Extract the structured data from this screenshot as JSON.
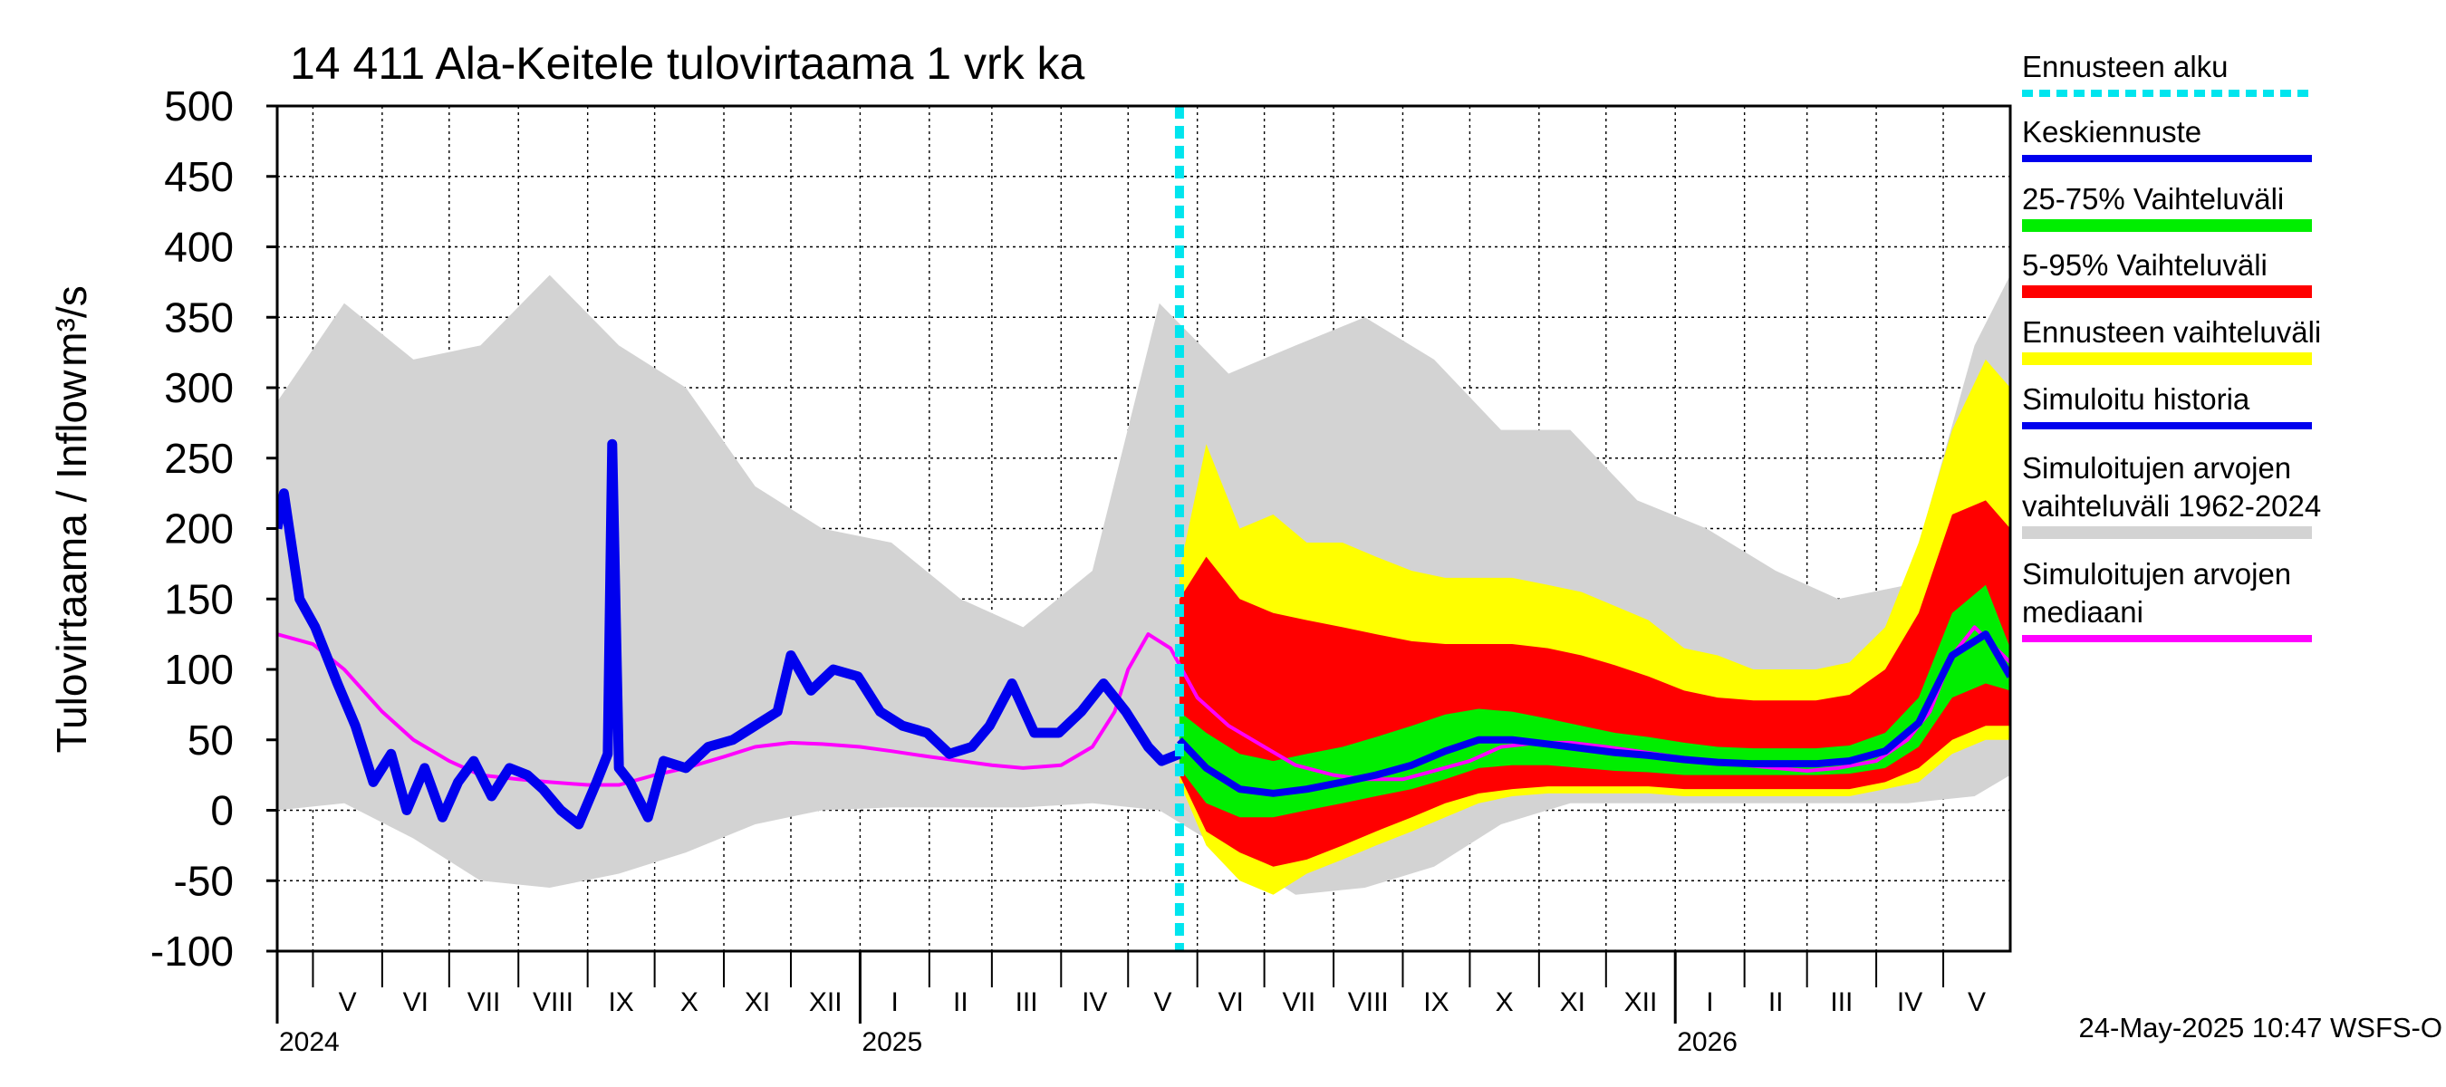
{
  "chart_data": {
    "type": "area",
    "title": "14 411 Ala-Keitele tulovirtaama 1 vrk ka",
    "ylabel": "Tulovirtaama / Inflow",
    "yunit": "m³/s",
    "ylim": [
      -100,
      500
    ],
    "yticks": [
      500,
      450,
      400,
      350,
      300,
      250,
      200,
      150,
      100,
      50,
      0,
      -50,
      -100
    ],
    "grid": true,
    "x_range": [
      "2024-04-15",
      "2026-05-31"
    ],
    "forecast_start": "2025-05-24",
    "months": [
      {
        "label": "V",
        "start": "2024-05-01"
      },
      {
        "label": "VI",
        "start": "2024-06-01"
      },
      {
        "label": "VII",
        "start": "2024-07-01"
      },
      {
        "label": "VIII",
        "start": "2024-08-01"
      },
      {
        "label": "IX",
        "start": "2024-09-01"
      },
      {
        "label": "X",
        "start": "2024-10-01"
      },
      {
        "label": "XI",
        "start": "2024-11-01"
      },
      {
        "label": "XII",
        "start": "2024-12-01"
      },
      {
        "label": "I",
        "start": "2025-01-01"
      },
      {
        "label": "II",
        "start": "2025-02-01"
      },
      {
        "label": "III",
        "start": "2025-03-01"
      },
      {
        "label": "IV",
        "start": "2025-04-01"
      },
      {
        "label": "V",
        "start": "2025-05-01"
      },
      {
        "label": "VI",
        "start": "2025-06-01"
      },
      {
        "label": "VII",
        "start": "2025-07-01"
      },
      {
        "label": "VIII",
        "start": "2025-08-01"
      },
      {
        "label": "IX",
        "start": "2025-09-01"
      },
      {
        "label": "X",
        "start": "2025-10-01"
      },
      {
        "label": "XI",
        "start": "2025-11-01"
      },
      {
        "label": "XII",
        "start": "2025-12-01"
      },
      {
        "label": "I",
        "start": "2026-01-01"
      },
      {
        "label": "II",
        "start": "2026-02-01"
      },
      {
        "label": "III",
        "start": "2026-03-01"
      },
      {
        "label": "IV",
        "start": "2026-04-01"
      },
      {
        "label": "V",
        "start": "2026-05-01"
      }
    ],
    "years": [
      {
        "label": "2024",
        "start": "2024-04-15"
      },
      {
        "label": "2025",
        "start": "2025-01-01"
      },
      {
        "label": "2026",
        "start": "2026-01-01"
      }
    ],
    "legend_placement": "right",
    "legend": [
      {
        "label": "Ennusteen alku",
        "color": "#00e5ee",
        "style": "dashed"
      },
      {
        "label": "Keskiennuste",
        "color": "#0000ee",
        "style": "line"
      },
      {
        "label": "25-75% Vaihteluväli",
        "color": "#00ee00",
        "style": "band"
      },
      {
        "label": "5-95% Vaihteluväli",
        "color": "#ff0000",
        "style": "band"
      },
      {
        "label": "Ennusteen vaihteluväli",
        "color": "#ffff00",
        "style": "band"
      },
      {
        "label": "Simuloitu historia",
        "color": "#0000ee",
        "style": "line"
      },
      {
        "label": "Simuloitujen arvojen vaihteluväli 1962-2024",
        "lines": [
          "Simuloitujen arvojen",
          "vaihteluväli 1962-2024"
        ],
        "color": "#d3d3d3",
        "style": "band"
      },
      {
        "label": "Simuloitujen arvojen mediaani",
        "lines": [
          "Simuloitujen arvojen",
          "mediaani"
        ],
        "color": "#ff00ff",
        "style": "line"
      }
    ],
    "series": [
      {
        "key": "hist_range",
        "x": [
          "2024-04-15",
          "2024-05-15",
          "2024-06-15",
          "2024-07-15",
          "2024-08-15",
          "2024-09-15",
          "2024-10-15",
          "2024-11-15",
          "2024-12-15",
          "2025-01-15",
          "2025-02-15",
          "2025-03-15",
          "2025-04-15",
          "2025-05-15",
          "2025-06-15",
          "2025-07-15",
          "2025-08-15",
          "2025-09-15",
          "2025-10-15",
          "2025-11-15",
          "2025-12-15",
          "2026-01-15",
          "2026-02-15",
          "2026-03-15",
          "2026-04-15",
          "2026-05-15",
          "2026-05-31"
        ],
        "low": [
          0,
          5,
          -20,
          -50,
          -55,
          -45,
          -30,
          -10,
          0,
          2,
          2,
          2,
          5,
          0,
          -30,
          -60,
          -55,
          -40,
          -10,
          5,
          5,
          5,
          5,
          5,
          5,
          10,
          25
        ],
        "high": [
          290,
          360,
          320,
          330,
          380,
          330,
          300,
          230,
          200,
          190,
          150,
          130,
          170,
          360,
          310,
          330,
          350,
          320,
          270,
          270,
          220,
          200,
          170,
          150,
          160,
          330,
          380
        ]
      },
      {
        "key": "fc_range",
        "x": [
          "2025-05-24",
          "2025-06-05",
          "2025-06-20",
          "2025-07-05",
          "2025-07-20",
          "2025-08-05",
          "2025-08-20",
          "2025-09-05",
          "2025-09-20",
          "2025-10-05",
          "2025-10-20",
          "2025-11-05",
          "2025-11-20",
          "2025-12-05",
          "2025-12-20",
          "2026-01-05",
          "2026-01-20",
          "2026-02-05",
          "2026-02-20",
          "2026-03-05",
          "2026-03-20",
          "2026-04-05",
          "2026-04-20",
          "2026-05-05",
          "2026-05-20",
          "2026-05-31"
        ],
        "low": [
          20,
          -25,
          -50,
          -60,
          -45,
          -35,
          -25,
          -15,
          -5,
          5,
          10,
          12,
          12,
          12,
          12,
          10,
          10,
          10,
          10,
          10,
          10,
          15,
          20,
          40,
          50,
          50
        ],
        "high": [
          170,
          260,
          200,
          210,
          190,
          190,
          180,
          170,
          165,
          165,
          165,
          160,
          155,
          145,
          135,
          115,
          110,
          100,
          100,
          100,
          105,
          130,
          190,
          270,
          320,
          300
        ]
      },
      {
        "key": "p5_95",
        "x": [
          "2025-05-24",
          "2025-06-05",
          "2025-06-20",
          "2025-07-05",
          "2025-07-20",
          "2025-08-05",
          "2025-08-20",
          "2025-09-05",
          "2025-09-20",
          "2025-10-05",
          "2025-10-20",
          "2025-11-05",
          "2025-11-20",
          "2025-12-05",
          "2025-12-20",
          "2026-01-05",
          "2026-01-20",
          "2026-02-05",
          "2026-02-20",
          "2026-03-05",
          "2026-03-20",
          "2026-04-05",
          "2026-04-20",
          "2026-05-05",
          "2026-05-20",
          "2026-05-31"
        ],
        "low": [
          25,
          -15,
          -30,
          -40,
          -35,
          -25,
          -15,
          -5,
          5,
          12,
          15,
          17,
          17,
          17,
          17,
          15,
          15,
          15,
          15,
          15,
          15,
          20,
          30,
          50,
          60,
          60
        ],
        "high": [
          150,
          180,
          150,
          140,
          135,
          130,
          125,
          120,
          118,
          118,
          118,
          115,
          110,
          103,
          95,
          85,
          80,
          78,
          78,
          78,
          82,
          100,
          140,
          210,
          220,
          200
        ]
      },
      {
        "key": "p25_75",
        "x": [
          "2025-05-24",
          "2025-06-05",
          "2025-06-20",
          "2025-07-05",
          "2025-07-20",
          "2025-08-05",
          "2025-08-20",
          "2025-09-05",
          "2025-09-20",
          "2025-10-05",
          "2025-10-20",
          "2025-11-05",
          "2025-11-20",
          "2025-12-05",
          "2025-12-20",
          "2026-01-05",
          "2026-01-20",
          "2026-02-05",
          "2026-02-20",
          "2026-03-05",
          "2026-03-20",
          "2026-04-05",
          "2026-04-20",
          "2026-05-05",
          "2026-05-20",
          "2026-05-31"
        ],
        "low": [
          30,
          5,
          -5,
          -5,
          0,
          5,
          10,
          15,
          22,
          30,
          32,
          32,
          30,
          28,
          27,
          25,
          25,
          25,
          25,
          25,
          26,
          30,
          45,
          80,
          90,
          85
        ],
        "high": [
          70,
          55,
          40,
          35,
          40,
          45,
          52,
          60,
          68,
          72,
          70,
          65,
          60,
          55,
          52,
          48,
          45,
          44,
          44,
          44,
          46,
          55,
          80,
          140,
          160,
          115
        ]
      },
      {
        "key": "median_fc",
        "name": "Keskiennuste",
        "x": [
          "2025-05-24",
          "2025-06-05",
          "2025-06-20",
          "2025-07-05",
          "2025-07-20",
          "2025-08-05",
          "2025-08-20",
          "2025-09-05",
          "2025-09-20",
          "2025-10-05",
          "2025-10-20",
          "2025-11-05",
          "2025-11-20",
          "2025-12-05",
          "2025-12-20",
          "2026-01-05",
          "2026-01-20",
          "2026-02-05",
          "2026-02-20",
          "2026-03-05",
          "2026-03-20",
          "2026-04-05",
          "2026-04-20",
          "2026-05-05",
          "2026-05-20",
          "2026-05-31"
        ],
        "y": [
          50,
          30,
          15,
          12,
          15,
          20,
          25,
          32,
          42,
          50,
          50,
          47,
          44,
          41,
          39,
          36,
          34,
          33,
          33,
          33,
          35,
          42,
          62,
          110,
          125,
          95
        ]
      },
      {
        "key": "sim_hist",
        "name": "Simuloitu historia",
        "x": [
          "2024-04-15",
          "2024-04-18",
          "2024-04-25",
          "2024-05-02",
          "2024-05-12",
          "2024-05-20",
          "2024-05-28",
          "2024-06-05",
          "2024-06-12",
          "2024-06-20",
          "2024-06-28",
          "2024-07-05",
          "2024-07-12",
          "2024-07-20",
          "2024-07-28",
          "2024-08-05",
          "2024-08-12",
          "2024-08-20",
          "2024-08-28",
          "2024-09-05",
          "2024-09-10",
          "2024-09-12",
          "2024-09-15",
          "2024-09-20",
          "2024-09-28",
          "2024-10-05",
          "2024-10-15",
          "2024-10-25",
          "2024-11-05",
          "2024-11-15",
          "2024-11-25",
          "2024-12-01",
          "2024-12-10",
          "2024-12-20",
          "2024-12-31",
          "2025-01-10",
          "2025-01-20",
          "2025-01-31",
          "2025-02-10",
          "2025-02-20",
          "2025-02-28",
          "2025-03-10",
          "2025-03-20",
          "2025-03-31",
          "2025-04-10",
          "2025-04-20",
          "2025-04-30",
          "2025-05-10",
          "2025-05-16",
          "2025-05-24"
        ],
        "y": [
          200,
          225,
          150,
          130,
          90,
          60,
          20,
          40,
          0,
          30,
          -5,
          20,
          35,
          10,
          30,
          25,
          15,
          0,
          -10,
          20,
          40,
          260,
          30,
          20,
          -5,
          35,
          30,
          45,
          50,
          60,
          70,
          110,
          85,
          100,
          95,
          70,
          60,
          55,
          40,
          45,
          60,
          90,
          55,
          55,
          70,
          90,
          70,
          45,
          35,
          40
        ]
      },
      {
        "key": "median_hist",
        "name": "Simuloitujen arvojen mediaani",
        "x": [
          "2024-04-15",
          "2024-05-01",
          "2024-05-15",
          "2024-06-01",
          "2024-06-15",
          "2024-07-01",
          "2024-07-15",
          "2024-08-01",
          "2024-08-15",
          "2024-09-01",
          "2024-09-15",
          "2024-10-01",
          "2024-10-15",
          "2024-11-01",
          "2024-11-15",
          "2024-12-01",
          "2024-12-15",
          "2025-01-01",
          "2025-01-15",
          "2025-02-01",
          "2025-02-15",
          "2025-03-01",
          "2025-03-15",
          "2025-04-01",
          "2025-04-15",
          "2025-04-25",
          "2025-05-01",
          "2025-05-10",
          "2025-05-20",
          "2025-06-01",
          "2025-06-15",
          "2025-07-01",
          "2025-07-15",
          "2025-08-01",
          "2025-08-15",
          "2025-09-01",
          "2025-09-15",
          "2025-10-01",
          "2025-10-15",
          "2025-11-01",
          "2025-11-15",
          "2025-12-01",
          "2025-12-15",
          "2026-01-01",
          "2026-01-15",
          "2026-02-01",
          "2026-02-15",
          "2026-03-01",
          "2026-03-15",
          "2026-04-01",
          "2026-04-15",
          "2026-04-25",
          "2026-05-05",
          "2026-05-15",
          "2026-05-31"
        ],
        "y": [
          125,
          118,
          100,
          70,
          50,
          35,
          25,
          22,
          20,
          18,
          18,
          25,
          30,
          38,
          45,
          48,
          47,
          45,
          42,
          38,
          35,
          32,
          30,
          32,
          45,
          70,
          100,
          125,
          115,
          80,
          60,
          45,
          32,
          25,
          22,
          22,
          28,
          35,
          45,
          48,
          48,
          45,
          42,
          38,
          35,
          32,
          30,
          28,
          30,
          35,
          50,
          70,
          110,
          130,
          105
        ]
      }
    ]
  },
  "timestamp": "24-May-2025 10:47 WSFS-O"
}
